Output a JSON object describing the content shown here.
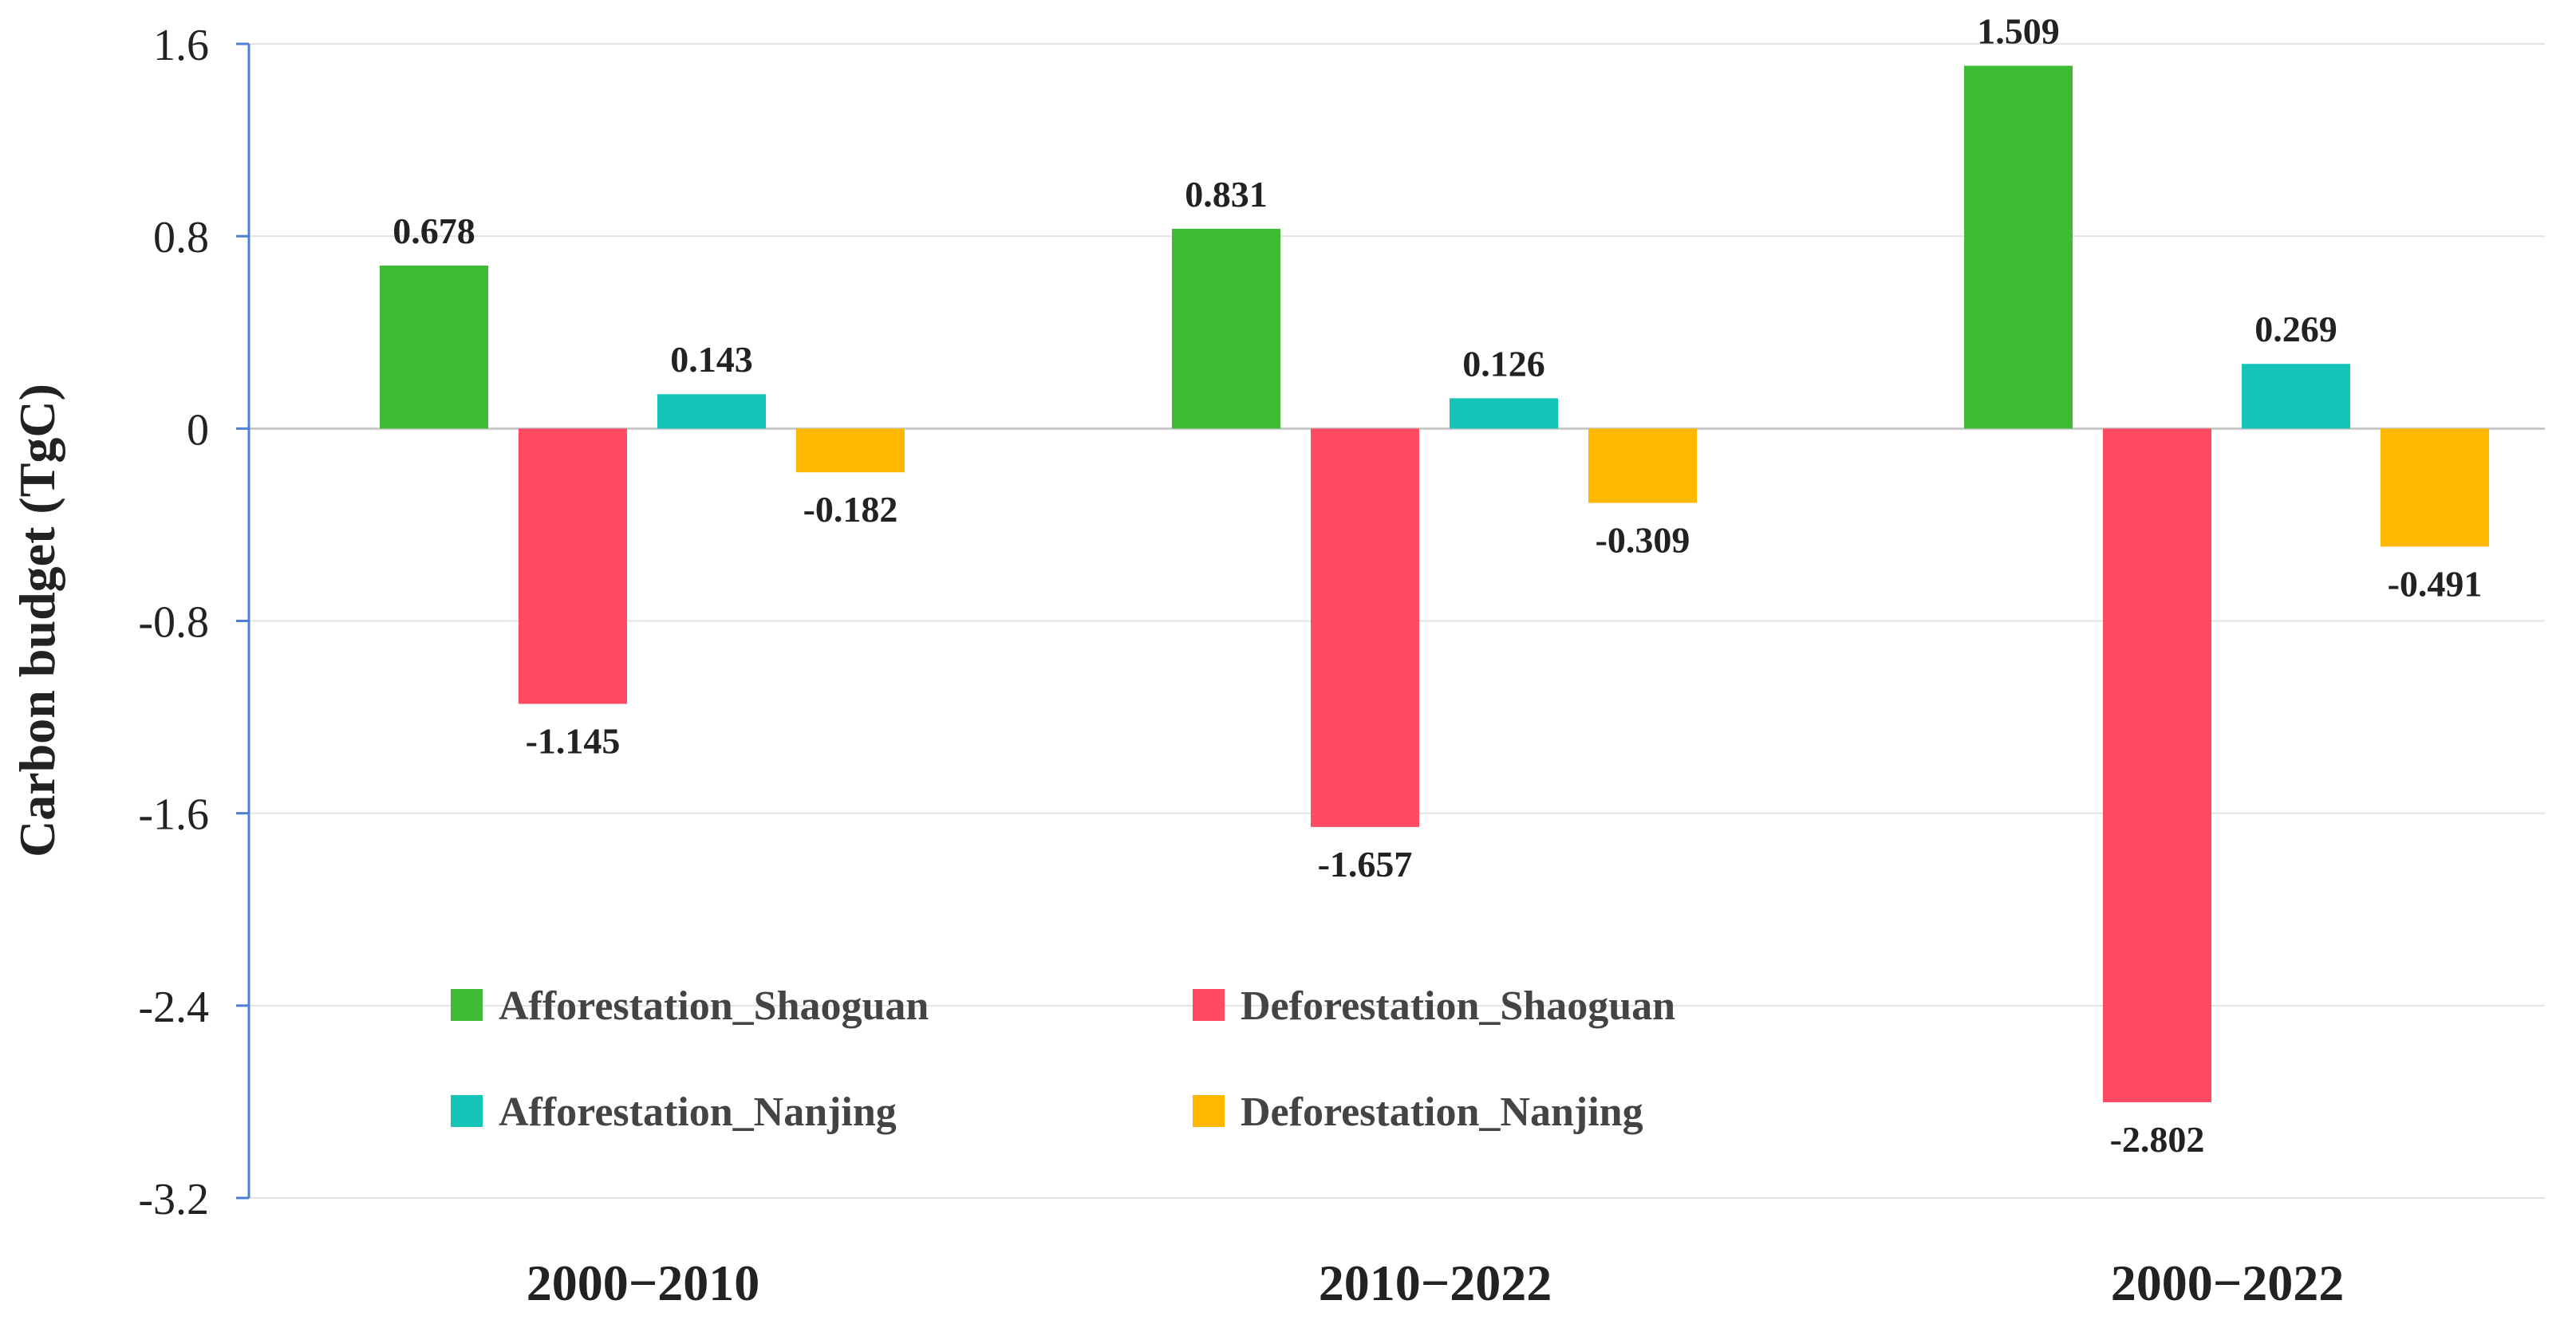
{
  "chart_data": {
    "type": "bar",
    "title": "",
    "xlabel": "",
    "ylabel": "Carbon budget (TgC)",
    "ylim": [
      -3.2,
      1.6
    ],
    "yticks": [
      "1.6",
      "0.8",
      "0",
      "-0.8",
      "-1.6",
      "-2.4",
      "-3.2"
    ],
    "ytick_values": [
      1.6,
      0.8,
      0,
      -0.8,
      -1.6,
      -2.4,
      -3.2
    ],
    "grid": true,
    "categories": [
      "2000−2010",
      "2010−2022",
      "2000−2022"
    ],
    "series": [
      {
        "name": "Afforestation_Shaoguan",
        "color": "#3dbb35",
        "values": [
          0.678,
          0.831,
          1.509
        ],
        "labels": [
          "0.678",
          "0.831",
          "1.509"
        ]
      },
      {
        "name": "Deforestation_Shaoguan",
        "color": "#ff4a61",
        "values": [
          -1.145,
          -1.657,
          -2.802
        ],
        "labels": [
          "-1.145",
          "-1.657",
          "-2.802"
        ]
      },
      {
        "name": "Afforestation_Nanjing",
        "color": "#13c4b7",
        "values": [
          0.143,
          0.126,
          0.269
        ],
        "labels": [
          "0.143",
          "0.126",
          "0.269"
        ]
      },
      {
        "name": "Deforestation_Nanjing",
        "color": "#ffb800",
        "values": [
          -0.182,
          -0.309,
          -0.491
        ],
        "labels": [
          "-0.182",
          "-0.309",
          "-0.491"
        ]
      }
    ],
    "legend_position": "lower-left inside, 2x2 grid"
  }
}
